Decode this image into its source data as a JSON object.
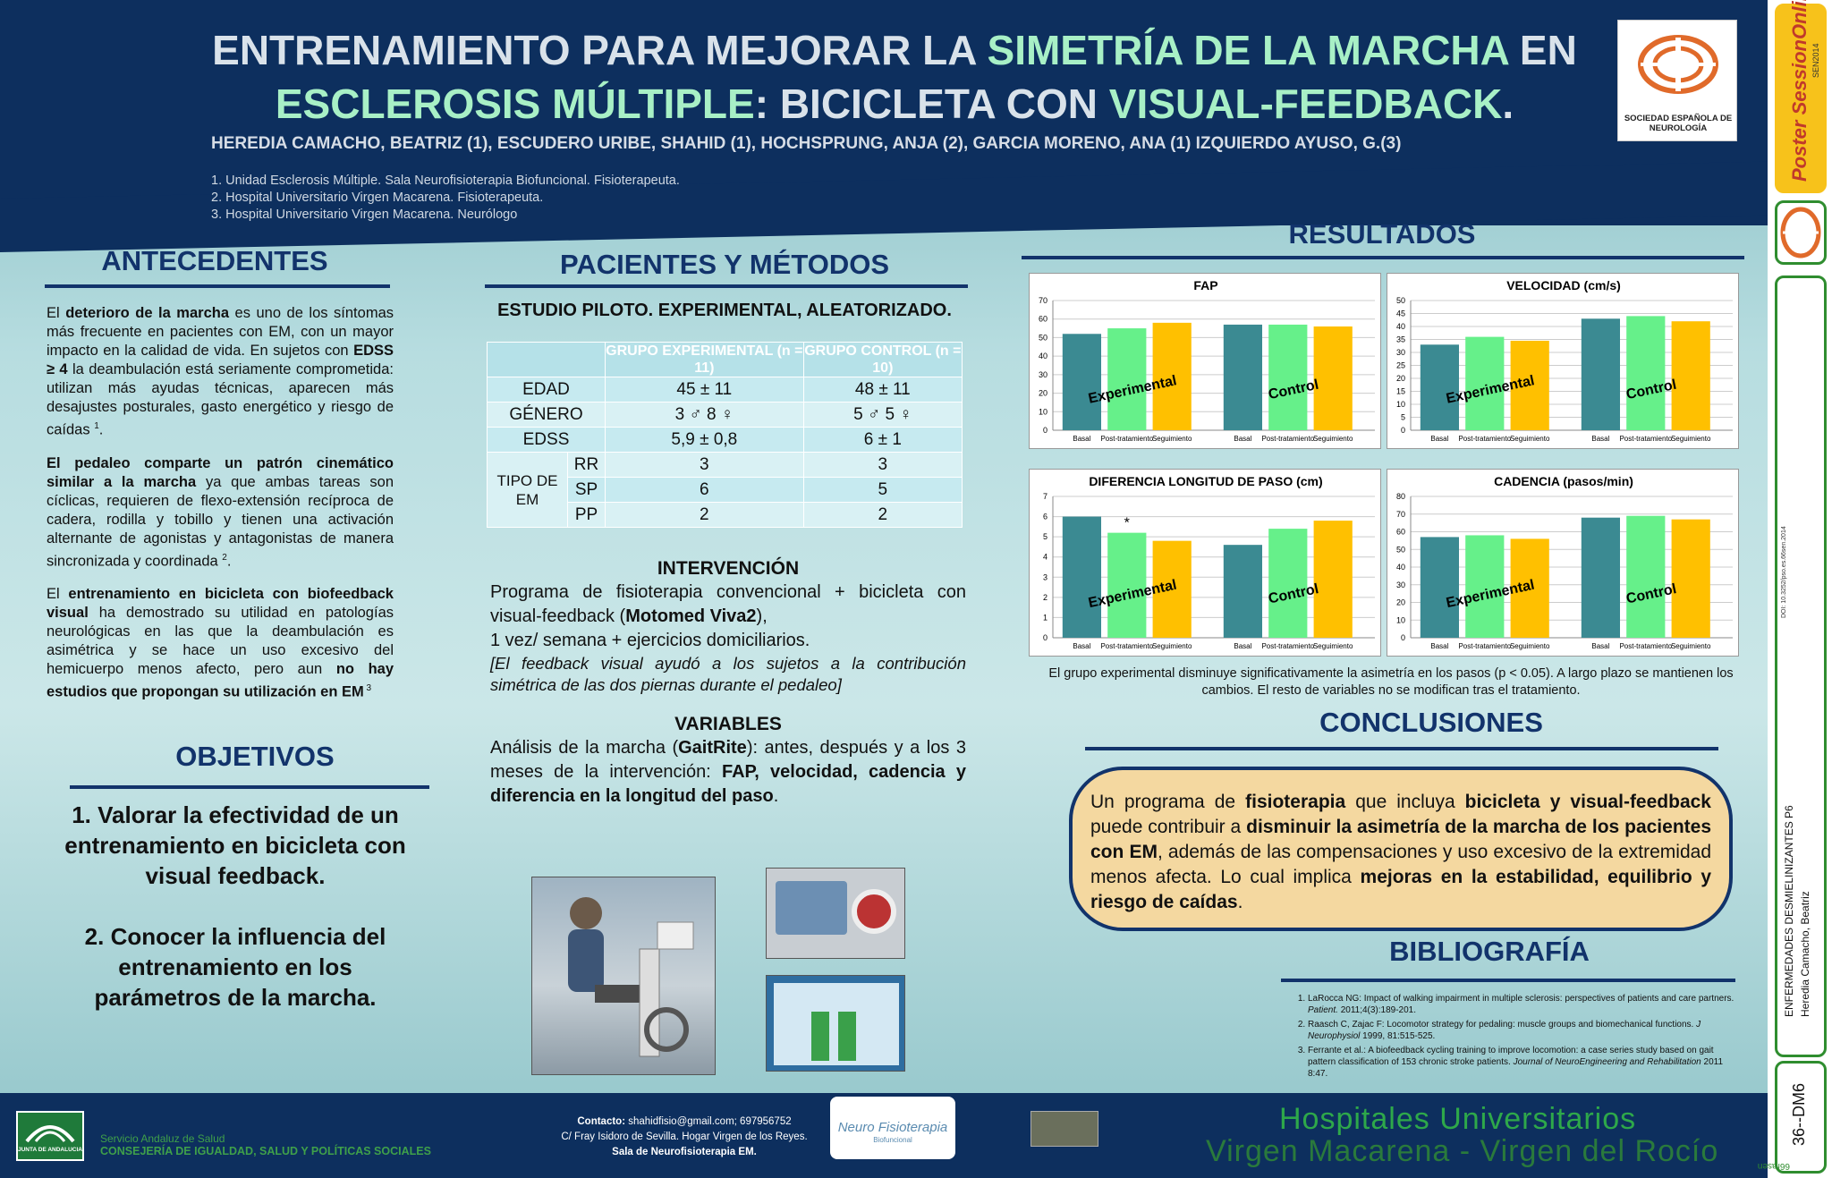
{
  "header": {
    "title_p1": "ENTRENAMIENTO PARA MEJORAR LA ",
    "title_hl1": "SIMETRÍA DE LA MARCHA",
    "title_p2": " EN ",
    "title_hl2": "ESCLEROSIS MÚLTIPLE",
    "title_p3": ": BICICLETA CON ",
    "title_hl3": "VISUAL-FEEDBACK",
    "title_p4": ".",
    "authors": "HEREDIA  CAMACHO, BEATRIZ (1), ESCUDERO URIBE, SHAHID (1), HOCHSPRUNG, ANJA (2),  GARCIA MORENO, ANA (1) IZQUIERDO AYUSO, G.(3)",
    "affiliations": [
      "1. Unidad Esclerosis Múltiple. Sala Neurofisioterapia Biofuncional. Fisioterapeuta.",
      "2. Hospital Universitario Virgen Macarena. Fisioterapeuta.",
      "3. Hospital Universitario Virgen Macarena. Neurólogo"
    ],
    "logo_caption": "SOCIEDAD ESPAÑOLA DE NEUROLOGÍA"
  },
  "antecedentes": {
    "title": "ANTECEDENTES",
    "p1_a": "El ",
    "p1_b": "deterioro de la marcha",
    "p1_c": " es uno de los síntomas más frecuente en pacientes con EM, con un mayor impacto en la calidad de vida. En sujetos con ",
    "p1_d": "EDSS ≥ 4",
    "p1_e": " la deambulación está seriamente comprometida: utilizan más ayudas técnicas, aparecen más desajustes posturales, gasto energético y riesgo de caídas ",
    "p1_sup": "1",
    "p1_f": ".",
    "p2_a": "El pedaleo comparte un patrón cinemático similar a la marcha",
    "p2_b": " ya que ambas tareas son cíclicas, requieren de flexo-extensión recíproca de cadera, rodilla y tobillo y tienen una activación alternante de agonistas y antagonistas de manera sincronizada y coordinada ",
    "p2_sup": "2",
    "p2_c": ".",
    "p3_a": "El ",
    "p3_b": "entrenamiento en bicicleta con biofeedback visual",
    "p3_c": " ha demostrado su utilidad en patologías neurológicas en las que la deambulación es asimétrica y se hace un uso excesivo del hemicuerpo menos afecto, pero aun ",
    "p3_d": "no hay estudios que propongan su utilización en EM",
    "p3_sup": " 3"
  },
  "objetivos": {
    "title": "OBJETIVOS",
    "item1": "1.  Valorar la efectividad de un entrenamiento en bicicleta con visual feedback.",
    "item2": "2.  Conocer la influencia del entrenamiento en los parámetros de la marcha."
  },
  "metodos": {
    "title": "PACIENTES Y MÉTODOS",
    "subtitle": "ESTUDIO PILOTO. EXPERIMENTAL, ALEATORIZADO.",
    "table": {
      "col_exp": "GRUPO EXPERIMENTAL (n = 11)",
      "col_ctrl": "GRUPO CONTROL (n = 10)",
      "rows": [
        {
          "label": "EDAD",
          "exp": "45 ± 11",
          "ctrl": "48 ± 11"
        },
        {
          "label": "GÉNERO",
          "exp": "3 ♂   8 ♀",
          "ctrl": "5 ♂    5 ♀"
        },
        {
          "label": "EDSS",
          "exp": "5,9 ± 0,8",
          "ctrl": "6 ± 1"
        }
      ],
      "tipo_label": "TIPO DE EM",
      "tipo_rows": [
        {
          "label": "RR",
          "exp": "3",
          "ctrl": "3"
        },
        {
          "label": "SP",
          "exp": "6",
          "ctrl": "5"
        },
        {
          "label": "PP",
          "exp": "2",
          "ctrl": "2"
        }
      ]
    },
    "intervencion_title": "INTERVENCIÓN",
    "int_a": "Programa de fisioterapia convencional + bicicleta con visual-feedback (",
    "int_b": "Motomed Viva2",
    "int_c": "),",
    "int_d": "1 vez/ semana + ejercicios domiciliarios.",
    "int_e": "[El feedback visual ayudó a los sujetos a la contribución simétrica de las dos piernas durante el pedaleo]",
    "variables_title": "VARIABLES",
    "var_a": "Análisis de la marcha (",
    "var_b": "GaitRite",
    "var_c": "): antes, después y a los 3 meses de la intervención: ",
    "var_d": "FAP, velocidad, cadencia y diferencia en la longitud del paso",
    "var_e": "."
  },
  "resultados": {
    "title": "RESULTADOS",
    "caption": "El grupo experimental disminuye significativamente la asimetría en los pasos (p < 0.05). A largo plazo se mantienen los cambios. El resto de variables no se modifican tras el tratamiento."
  },
  "colors": {
    "basal": "#3b8a92",
    "post": "#66f08a",
    "seguimiento": "#ffc000"
  },
  "chart_data": [
    {
      "type": "bar",
      "title": "FAP",
      "categories": [
        "Basal",
        "Post-tratamiento",
        "Seguimiento",
        "Basal",
        "Post-tratamiento",
        "Seguimiento"
      ],
      "values": [
        52,
        55,
        58,
        57,
        57,
        56
      ],
      "groups": [
        "Experimental",
        "Control"
      ],
      "ylim": [
        0,
        70
      ],
      "yticks": [
        0,
        10,
        20,
        30,
        40,
        50,
        60,
        70
      ]
    },
    {
      "type": "bar",
      "title": "VELOCIDAD (cm/s)",
      "categories": [
        "Basal",
        "Post-tratamiento",
        "Seguimiento",
        "Basal",
        "Post-tratamiento",
        "Seguimiento"
      ],
      "values": [
        33,
        36,
        34.5,
        43,
        44,
        42
      ],
      "groups": [
        "Experimental",
        "Control"
      ],
      "ylim": [
        0,
        50
      ],
      "yticks": [
        0,
        5,
        10,
        15,
        20,
        25,
        30,
        35,
        40,
        45,
        50
      ]
    },
    {
      "type": "bar",
      "title": "DIFERENCIA LONGITUD DE PASO (cm)",
      "categories": [
        "Basal",
        "Post-tratamiento",
        "Seguimiento",
        "Basal",
        "Post-tratamiento",
        "Seguimiento"
      ],
      "values": [
        6.0,
        5.2,
        4.8,
        4.6,
        5.4,
        5.8
      ],
      "groups": [
        "Experimental",
        "Control"
      ],
      "ylim": [
        0,
        7
      ],
      "yticks": [
        0,
        1,
        2,
        3,
        4,
        5,
        6,
        7
      ],
      "annotation": "*"
    },
    {
      "type": "bar",
      "title": "CADENCIA (pasos/min)",
      "categories": [
        "Basal",
        "Post-tratamiento",
        "Seguimiento",
        "Basal",
        "Post-tratamiento",
        "Seguimiento"
      ],
      "values": [
        57,
        58,
        56,
        68,
        69,
        67
      ],
      "groups": [
        "Experimental",
        "Control"
      ],
      "ylim": [
        0,
        80
      ],
      "yticks": [
        0,
        10,
        20,
        30,
        40,
        50,
        60,
        70,
        80
      ]
    }
  ],
  "conclusiones": {
    "title": "CONCLUSIONES",
    "a": "Un programa de ",
    "b": "fisioterapia",
    "c": " que incluya ",
    "d": "bicicleta y visual-feedback",
    "e": " puede contribuir a ",
    "f": "disminuir la asimetría de la marcha de los pacientes con EM",
    "g": ", además de las compensaciones y uso excesivo de la extremidad menos afecta. Lo cual implica ",
    "h": "mejoras en la estabilidad, equilibrio y riesgo de caídas",
    "i": "."
  },
  "bibliografia": {
    "title": "BIBLIOGRAFÍA",
    "ref1_a": "LaRocca NG: Impact of walking impairment in multiple sclerosis: perspectives of patients and care partners. ",
    "ref1_b": "Patient.",
    "ref1_c": " 2011;4(3):189-201.",
    "ref2_a": "Raasch C, Zajac F: Locomotor strategy for pedaling: muscle groups and biomechanical functions. ",
    "ref2_b": "J Neurophysiol",
    "ref2_c": " 1999, 81:515-525.",
    "ref3_a": "Ferrante et al.: A biofeedback cycling training to improve locomotion: a case series study based on gait pattern classification of 153 chronic stroke patients. ",
    "ref3_b": "Journal of NeuroEngineering and Rehabilitation",
    "ref3_c": " 2011 8:47."
  },
  "footer": {
    "sas_line1": "Servicio Andaluz de Salud",
    "sas_line2": "CONSEJERÍA DE IGUALDAD, SALUD Y POLÍTICAS SOCIALES",
    "junta": "JUNTA DE ANDALUCIA",
    "contact_label": "Contacto:",
    "contact": " shahidfisio@gmail.com; 697956752",
    "address": "C/ Fray Isidoro de Sevilla. Hogar Virgen de los Reyes.",
    "sala": "Sala de Neurofisioterapia EM.",
    "neuro_logo": "Neuro Fisioterapia",
    "neuro_sub": "Biofuncional",
    "hosp1": "Hospitales Universitarios",
    "hosp2": "Virgen Macarena - Virgen del Rocío"
  },
  "sidebar": {
    "brand": "Poster SessionOnline",
    "year": "SEN2014",
    "doi": "DOI: 10.3252/pso.es.66sen.2014",
    "category": "ENFERMEDADES DESMIELINIZANTES P6",
    "author": "Heredia Camacho, Beatriz",
    "code": "36--DM6",
    "footer_code": "66rasen"
  }
}
